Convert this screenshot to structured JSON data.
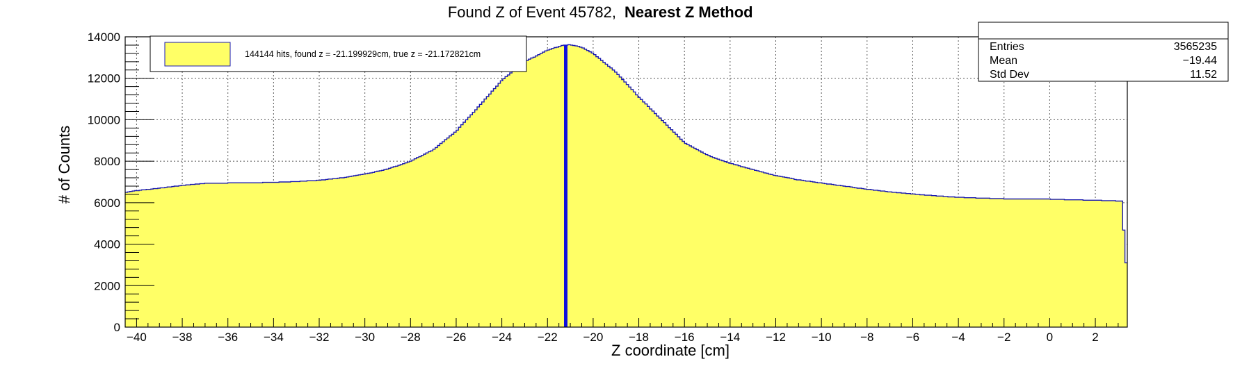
{
  "chart_data": {
    "type": "histogram",
    "title": "Found Z of Event 45782,",
    "title_bold": "Nearest Z Method",
    "xlabel": "Z coordinate [cm]",
    "ylabel": "# of Counts",
    "xlim": [
      -40.5,
      3.4
    ],
    "ylim": [
      0,
      14000
    ],
    "x_ticks": [
      -40,
      -38,
      -36,
      -34,
      -32,
      -30,
      -28,
      -26,
      -24,
      -22,
      -20,
      -18,
      -16,
      -14,
      -12,
      -10,
      -8,
      -6,
      -4,
      -2,
      0,
      2
    ],
    "x_tick_labels": [
      "−40",
      "−38",
      "−36",
      "−34",
      "−32",
      "−30",
      "−28",
      "−26",
      "−24",
      "−22",
      "−20",
      "−18",
      "−16",
      "−14",
      "−12",
      "−10",
      "−8",
      "−6",
      "−4",
      "−2",
      "0",
      "2"
    ],
    "y_ticks": [
      0,
      2000,
      4000,
      6000,
      8000,
      10000,
      12000,
      14000
    ],
    "y_tick_labels": [
      "0",
      "2000",
      "4000",
      "6000",
      "8000",
      "10000",
      "12000",
      "14000"
    ],
    "grid": true,
    "fill_color": "#ffff66",
    "line_color": "#1a1ab0",
    "marker_color": "#1010dd",
    "marker_x": -21.2,
    "profile": [
      [
        -40.5,
        3300
      ],
      [
        -40.45,
        6500
      ],
      [
        -40,
        6580
      ],
      [
        -39,
        6700
      ],
      [
        -38,
        6830
      ],
      [
        -37,
        6930
      ],
      [
        -36,
        6950
      ],
      [
        -35,
        6960
      ],
      [
        -34,
        6980
      ],
      [
        -33,
        7020
      ],
      [
        -32,
        7080
      ],
      [
        -31,
        7200
      ],
      [
        -30,
        7380
      ],
      [
        -29,
        7620
      ],
      [
        -28,
        8000
      ],
      [
        -27,
        8550
      ],
      [
        -26,
        9450
      ],
      [
        -25,
        10650
      ],
      [
        -24,
        11900
      ],
      [
        -23,
        12800
      ],
      [
        -22,
        13350
      ],
      [
        -21.3,
        13600
      ],
      [
        -21.0,
        13620
      ],
      [
        -20.5,
        13500
      ],
      [
        -20,
        13200
      ],
      [
        -19,
        12300
      ],
      [
        -18,
        11100
      ],
      [
        -17,
        10000
      ],
      [
        -16,
        8900
      ],
      [
        -15,
        8300
      ],
      [
        -14,
        7900
      ],
      [
        -13,
        7600
      ],
      [
        -12,
        7300
      ],
      [
        -11,
        7100
      ],
      [
        -10,
        6950
      ],
      [
        -9,
        6800
      ],
      [
        -8,
        6650
      ],
      [
        -7,
        6520
      ],
      [
        -6,
        6420
      ],
      [
        -5,
        6330
      ],
      [
        -4,
        6260
      ],
      [
        -3,
        6220
      ],
      [
        -2,
        6190
      ],
      [
        -1,
        6180
      ],
      [
        0,
        6170
      ],
      [
        1,
        6140
      ],
      [
        2,
        6120
      ],
      [
        3.2,
        6080
      ],
      [
        3.3,
        3100
      ],
      [
        3.4,
        3100
      ]
    ],
    "legend": {
      "text": "144144 hits, found z = -21.199929cm, true z = -21.172821cm",
      "placement": "top-left"
    },
    "stats": {
      "entries_label": "Entries",
      "entries_value": "3565235",
      "mean_label": "Mean",
      "mean_value": "−19.44",
      "std_label": "Std Dev",
      "std_value": "11.52"
    }
  }
}
